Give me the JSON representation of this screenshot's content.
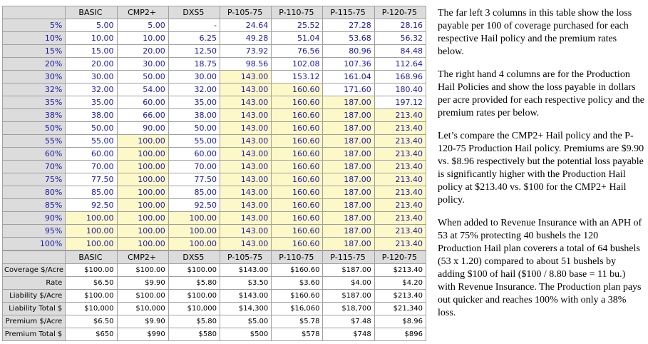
{
  "top_table": {
    "columns": [
      "BASIC",
      "CMP2+",
      "DXS5",
      "P-105-75",
      "P-110-75",
      "P-115-75",
      "P-120-75"
    ],
    "rows": [
      {
        "label": "5%",
        "cells": [
          "5.00",
          "5.00",
          "-",
          "24.64",
          "25.52",
          "27.28",
          "28.16"
        ]
      },
      {
        "label": "10%",
        "cells": [
          "10.00",
          "10.00",
          "6.25",
          "49.28",
          "51.04",
          "53.68",
          "56.32"
        ]
      },
      {
        "label": "15%",
        "cells": [
          "15.00",
          "20.00",
          "12.50",
          "73.92",
          "76.56",
          "80.96",
          "84.48"
        ]
      },
      {
        "label": "20%",
        "cells": [
          "20.00",
          "30.00",
          "18.75",
          "98.56",
          "102.08",
          "107.36",
          "112.64"
        ]
      },
      {
        "label": "30%",
        "cells": [
          "30.00",
          "50.00",
          "30.00",
          "143.00",
          "153.12",
          "161.04",
          "168.96"
        ]
      },
      {
        "label": "32%",
        "cells": [
          "32.00",
          "54.00",
          "32.00",
          "143.00",
          "160.60",
          "171.60",
          "180.40"
        ]
      },
      {
        "label": "35%",
        "cells": [
          "35.00",
          "60.00",
          "35.00",
          "143.00",
          "160.60",
          "187.00",
          "197.12"
        ]
      },
      {
        "label": "38%",
        "cells": [
          "38.00",
          "66.00",
          "38.00",
          "143.00",
          "160.60",
          "187.00",
          "213.40"
        ]
      },
      {
        "label": "50%",
        "cells": [
          "50.00",
          "90.00",
          "50.00",
          "143.00",
          "160.60",
          "187.00",
          "213.40"
        ]
      },
      {
        "label": "55%",
        "cells": [
          "55.00",
          "100.00",
          "55.00",
          "143.00",
          "160.60",
          "187.00",
          "213.40"
        ]
      },
      {
        "label": "60%",
        "cells": [
          "60.00",
          "100.00",
          "60.00",
          "143.00",
          "160.60",
          "187.00",
          "213.40"
        ]
      },
      {
        "label": "70%",
        "cells": [
          "70.00",
          "100.00",
          "70.00",
          "143.00",
          "160.60",
          "187.00",
          "213.40"
        ]
      },
      {
        "label": "75%",
        "cells": [
          "77.50",
          "100.00",
          "77.50",
          "143.00",
          "160.60",
          "187.00",
          "213.40"
        ]
      },
      {
        "label": "80%",
        "cells": [
          "85.00",
          "100.00",
          "85.00",
          "143.00",
          "160.60",
          "187.00",
          "213.40"
        ]
      },
      {
        "label": "85%",
        "cells": [
          "92.50",
          "100.00",
          "92.50",
          "143.00",
          "160.60",
          "187.00",
          "213.40"
        ]
      },
      {
        "label": "90%",
        "cells": [
          "100.00",
          "100.00",
          "100.00",
          "143.00",
          "160.60",
          "187.00",
          "213.40"
        ]
      },
      {
        "label": "95%",
        "cells": [
          "100.00",
          "100.00",
          "100.00",
          "143.00",
          "160.60",
          "187.00",
          "213.40"
        ]
      },
      {
        "label": "100%",
        "cells": [
          "100.00",
          "100.00",
          "100.00",
          "143.00",
          "160.60",
          "187.00",
          "213.40"
        ]
      }
    ]
  },
  "bottom_table": {
    "columns": [
      "BASIC",
      "CMP2+",
      "DXS5",
      "P-105-75",
      "P-110-75",
      "P-115-75",
      "P-120-75"
    ],
    "rows": [
      {
        "label": "Coverage $/Acre",
        "cells": [
          "$100.00",
          "$100.00",
          "$100.00",
          "$143.00",
          "$160.60",
          "$187.00",
          "$213.40"
        ]
      },
      {
        "label": "Rate",
        "cells": [
          "$6.50",
          "$9.90",
          "$5.80",
          "$3.50",
          "$3.60",
          "$4.00",
          "$4.20"
        ]
      },
      {
        "label": "Liability $/Acre",
        "cells": [
          "$100.00",
          "$100.00",
          "$100.00",
          "$143.00",
          "$160.60",
          "$187.00",
          "$213.40"
        ]
      },
      {
        "label": "Liability Total $",
        "cells": [
          "$10,000",
          "$10,000",
          "$10,000",
          "$14,300",
          "$16,060",
          "$18,700",
          "$21,340"
        ]
      },
      {
        "label": "Premium $/Acre",
        "cells": [
          "$6.50",
          "$9.90",
          "$5.80",
          "$5.00",
          "$5.78",
          "$7.48",
          "$8.96"
        ]
      },
      {
        "label": "Premium Total $",
        "cells": [
          "$650",
          "$990",
          "$580",
          "$500",
          "$578",
          "$748",
          "$896"
        ]
      }
    ]
  },
  "notes": {
    "p1": "The far left 3 columns in this table show the loss payable per 100 of coverage purchased for each respective Hail policy and the premium rates below.",
    "p2": "The right hand 4 columns are for the Production Hail Policies and show the loss payable in dollars per acre provided for each respective policy and the premium rates per below.",
    "p3": "Let’s compare the CMP2+ Hail policy and the P-120-75 Production Hail policy. Premiums are $9.90 vs. $8.96 respectively but the potential loss payable is significantly higher with the Production Hail policy at $213.40 vs. $100 for the CMP2+ Hail policy.",
    "p4": "When added to Revenue Insurance with an APH of 53 at 75% protecting 40 bushels the 120 Production Hail plan coverers a total of 64 bushels (53 x 1.20) compared to about 51 bushels by adding $100 of hail ($100 / 8.80 base = 11 bu.) with Revenue Insurance. The Production plan pays out quicker and reaches 100% with only a 38% loss."
  },
  "colors": {
    "highlight": "#fdf8c8",
    "header_bg": "#dcdcdc",
    "value_text": "#1a1aa8"
  }
}
